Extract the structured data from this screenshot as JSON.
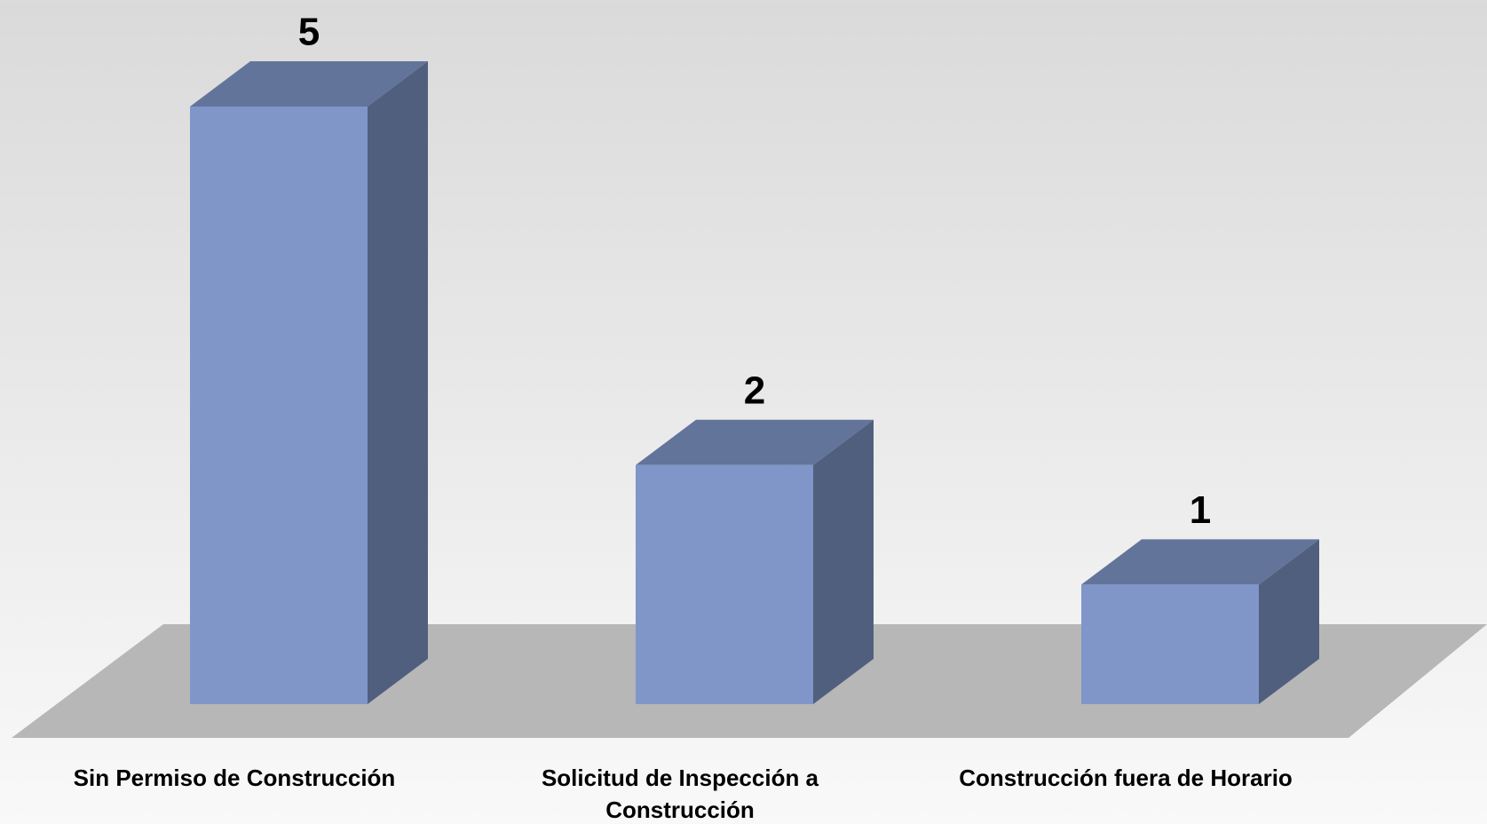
{
  "chart_data": {
    "type": "bar3d",
    "categories": [
      "Sin Permiso de Construcción",
      "Solicitud de Inspección a Construcción",
      "Construcción fuera de Horario"
    ],
    "values": [
      5,
      2,
      1
    ],
    "color": "#8096c9"
  }
}
